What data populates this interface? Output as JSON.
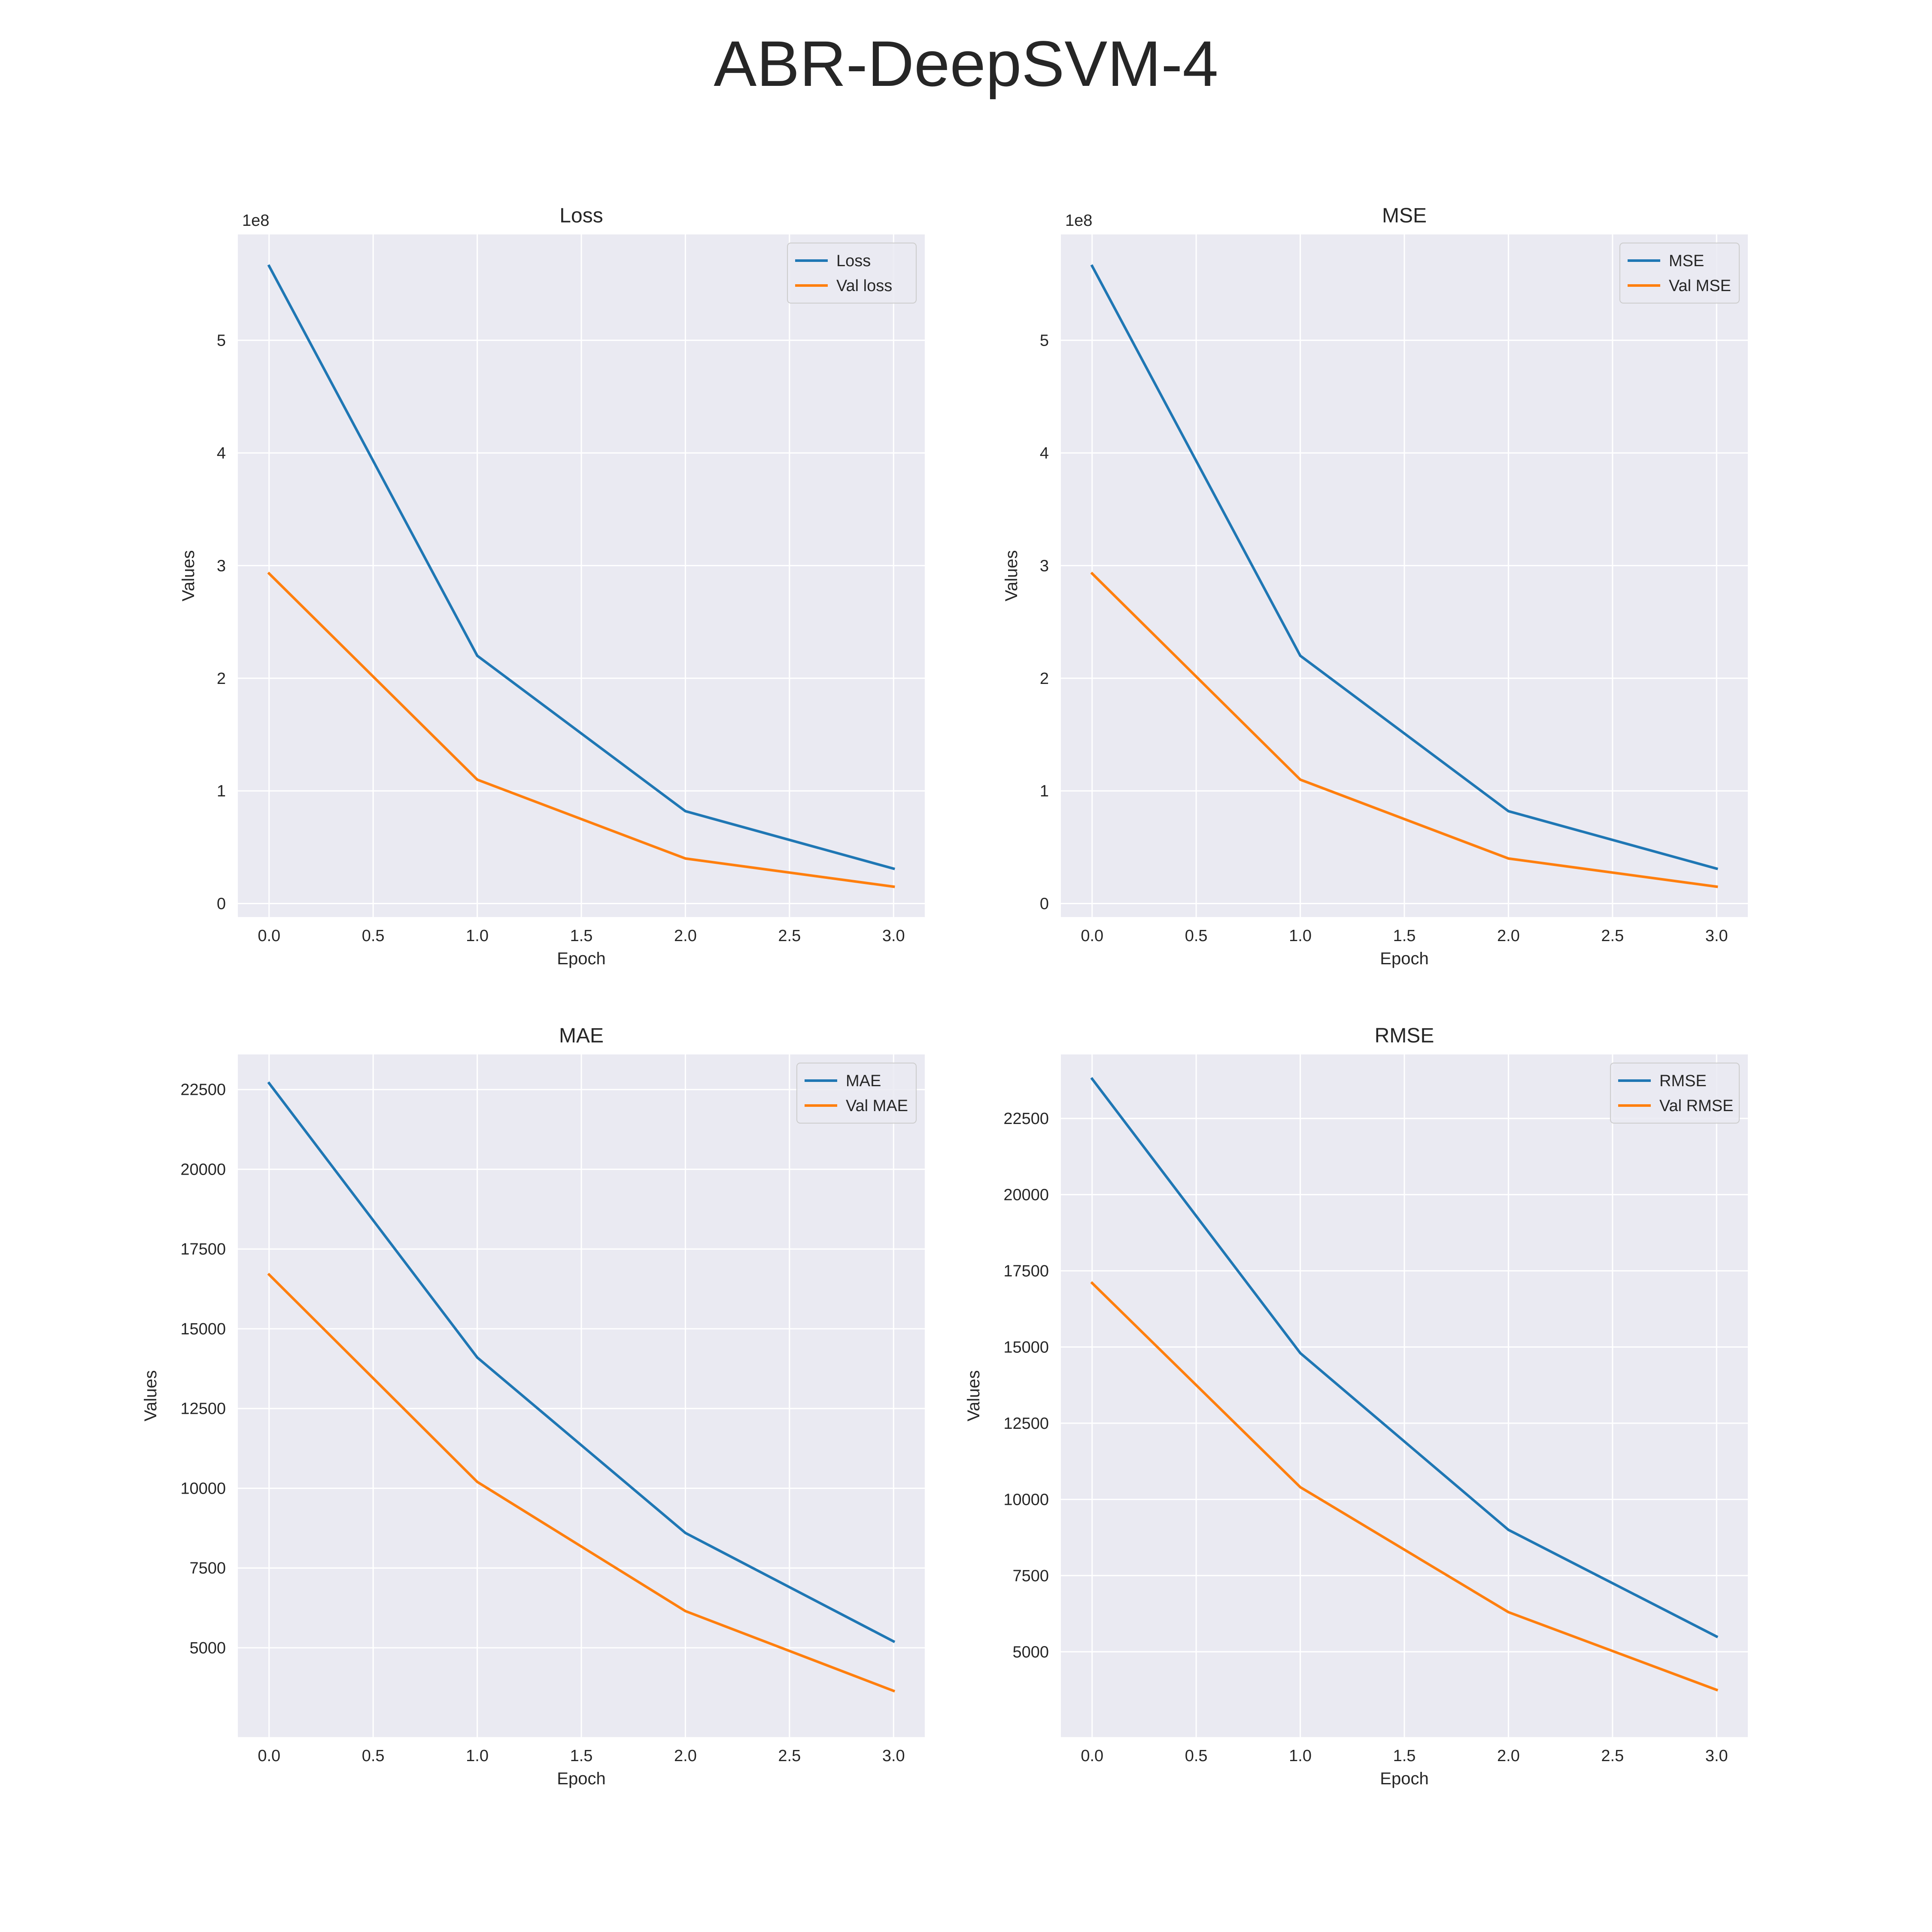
{
  "figure": {
    "title": "ABR-DeepSVM-4"
  },
  "chart_data": [
    {
      "type": "line",
      "title": "Loss",
      "xlabel": "Epoch",
      "ylabel": "Values",
      "y_offset_label": "1e8",
      "xlim": [
        -0.15,
        3.15
      ],
      "ylim": [
        -12000000,
        594000000
      ],
      "xticks": [
        0.0,
        0.5,
        1.0,
        1.5,
        2.0,
        2.5,
        3.0
      ],
      "xtick_labels": [
        "0.0",
        "0.5",
        "1.0",
        "1.5",
        "2.0",
        "2.5",
        "3.0"
      ],
      "yticks": [
        0,
        100000000,
        200000000,
        300000000,
        400000000,
        500000000
      ],
      "ytick_labels": [
        "0",
        "1",
        "2",
        "3",
        "4",
        "5"
      ],
      "grid": true,
      "legend_position": "top-right",
      "x": [
        0,
        1,
        2,
        3
      ],
      "series": [
        {
          "name": "Loss",
          "color": "#1f77b4",
          "values": [
            566000000,
            220000000,
            82000000,
            31000000
          ]
        },
        {
          "name": "Val loss",
          "color": "#ff7f0e",
          "values": [
            293000000,
            110000000,
            40000000,
            15000000
          ]
        }
      ]
    },
    {
      "type": "line",
      "title": "MSE",
      "xlabel": "Epoch",
      "ylabel": "Values",
      "y_offset_label": "1e8",
      "xlim": [
        -0.15,
        3.15
      ],
      "ylim": [
        -12000000,
        594000000
      ],
      "xticks": [
        0.0,
        0.5,
        1.0,
        1.5,
        2.0,
        2.5,
        3.0
      ],
      "xtick_labels": [
        "0.0",
        "0.5",
        "1.0",
        "1.5",
        "2.0",
        "2.5",
        "3.0"
      ],
      "yticks": [
        0,
        100000000,
        200000000,
        300000000,
        400000000,
        500000000
      ],
      "ytick_labels": [
        "0",
        "1",
        "2",
        "3",
        "4",
        "5"
      ],
      "grid": true,
      "legend_position": "top-right",
      "x": [
        0,
        1,
        2,
        3
      ],
      "series": [
        {
          "name": "MSE",
          "color": "#1f77b4",
          "values": [
            566000000,
            220000000,
            82000000,
            31000000
          ]
        },
        {
          "name": "Val MSE",
          "color": "#ff7f0e",
          "values": [
            293000000,
            110000000,
            40000000,
            15000000
          ]
        }
      ]
    },
    {
      "type": "line",
      "title": "MAE",
      "xlabel": "Epoch",
      "ylabel": "Values",
      "y_offset_label": "",
      "xlim": [
        -0.15,
        3.15
      ],
      "ylim": [
        2200,
        23600
      ],
      "xticks": [
        0.0,
        0.5,
        1.0,
        1.5,
        2.0,
        2.5,
        3.0
      ],
      "xtick_labels": [
        "0.0",
        "0.5",
        "1.0",
        "1.5",
        "2.0",
        "2.5",
        "3.0"
      ],
      "yticks": [
        5000,
        7500,
        10000,
        12500,
        15000,
        17500,
        20000,
        22500
      ],
      "ytick_labels": [
        "5000",
        "7500",
        "10000",
        "12500",
        "15000",
        "17500",
        "20000",
        "22500"
      ],
      "grid": true,
      "legend_position": "top-right",
      "x": [
        0,
        1,
        2,
        3
      ],
      "series": [
        {
          "name": "MAE",
          "color": "#1f77b4",
          "values": [
            22700,
            14100,
            8600,
            5200
          ]
        },
        {
          "name": "Val MAE",
          "color": "#ff7f0e",
          "values": [
            16700,
            10200,
            6150,
            3650
          ]
        }
      ]
    },
    {
      "type": "line",
      "title": "RMSE",
      "xlabel": "Epoch",
      "ylabel": "Values",
      "y_offset_label": "",
      "xlim": [
        -0.15,
        3.15
      ],
      "ylim": [
        2200,
        24600
      ],
      "xticks": [
        0.0,
        0.5,
        1.0,
        1.5,
        2.0,
        2.5,
        3.0
      ],
      "xtick_labels": [
        "0.0",
        "0.5",
        "1.0",
        "1.5",
        "2.0",
        "2.5",
        "3.0"
      ],
      "yticks": [
        5000,
        7500,
        10000,
        12500,
        15000,
        17500,
        20000,
        22500
      ],
      "ytick_labels": [
        "5000",
        "7500",
        "10000",
        "12500",
        "15000",
        "17500",
        "20000",
        "22500"
      ],
      "grid": true,
      "legend_position": "top-right",
      "x": [
        0,
        1,
        2,
        3
      ],
      "series": [
        {
          "name": "RMSE",
          "color": "#1f77b4",
          "values": [
            23800,
            14800,
            9000,
            5500
          ]
        },
        {
          "name": "Val RMSE",
          "color": "#ff7f0e",
          "values": [
            17100,
            10400,
            6300,
            3750
          ]
        }
      ]
    }
  ],
  "colors": {
    "axes_background": "#eaeaf2",
    "grid": "#ffffff",
    "text": "#262626"
  }
}
